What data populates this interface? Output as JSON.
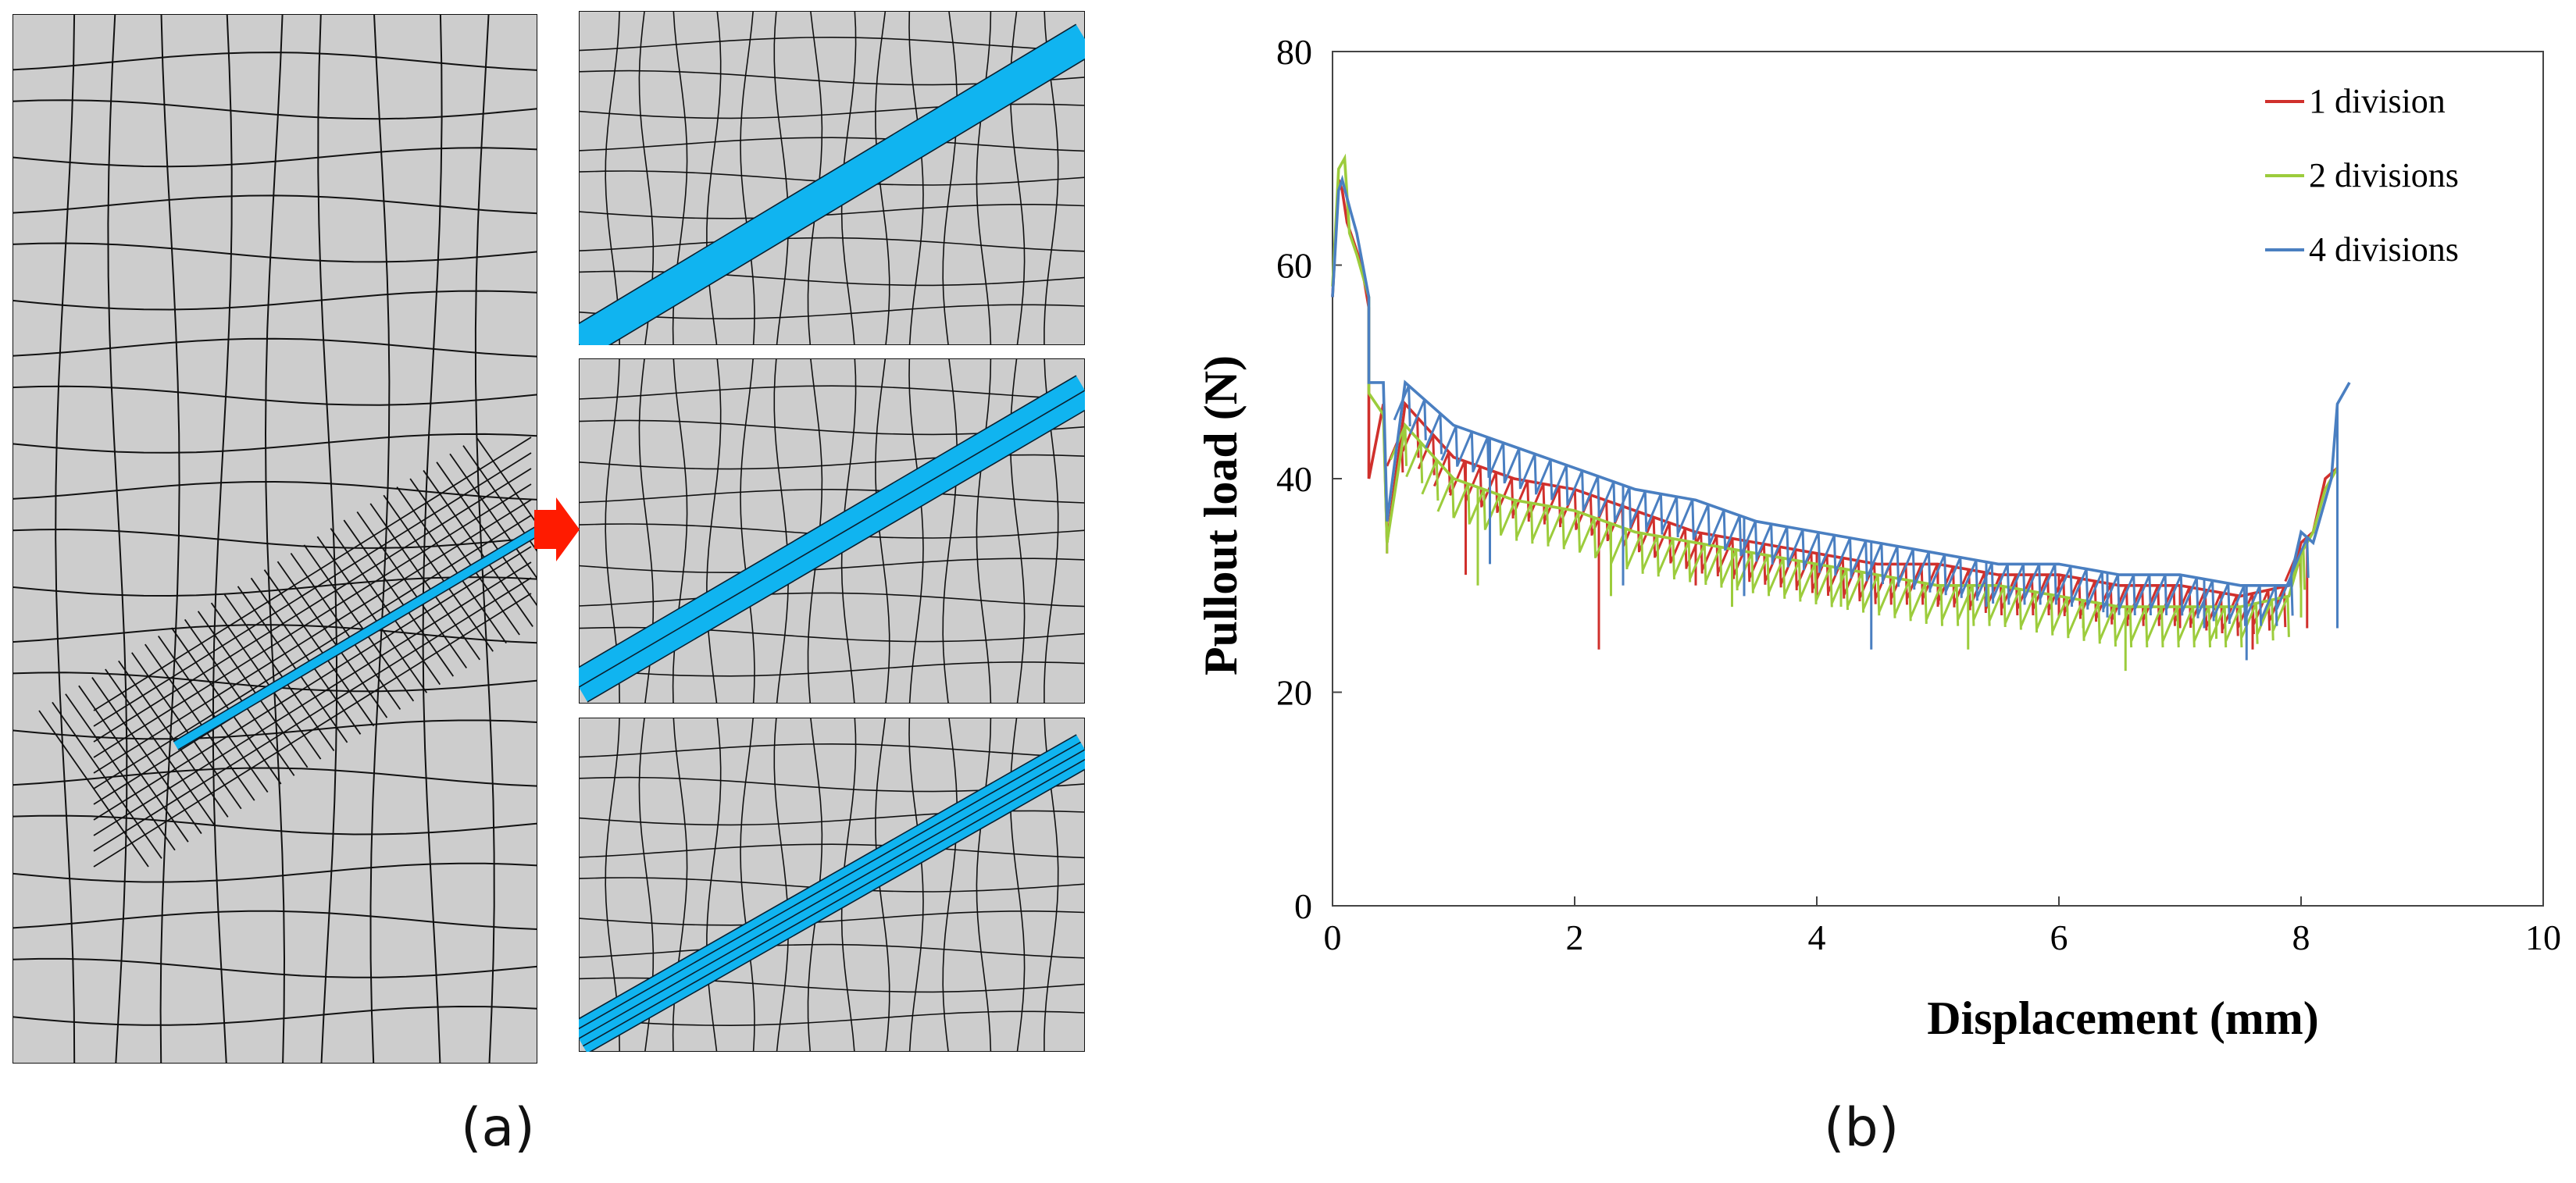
{
  "figure": {
    "panel_a_label": "(a)",
    "panel_b_label": "(b)"
  },
  "mesh": {
    "fill_color": "#cdcdcd",
    "line_color": "#111111",
    "fiber_color": "#10b4f0",
    "arrow_color": "#ff1b00",
    "zoom_panels": [
      {
        "name": "zoom-panel-1-division",
        "divisions": 1
      },
      {
        "name": "zoom-panel-2-divisions",
        "divisions": 2
      },
      {
        "name": "zoom-panel-4-divisions",
        "divisions": 4
      }
    ]
  },
  "chart_data": {
    "type": "line",
    "title": "",
    "xlabel": "Displacement (mm)",
    "ylabel": "Pullout load (N)",
    "xlim": [
      0,
      10
    ],
    "ylim": [
      0,
      80
    ],
    "xticks": [
      0,
      2,
      4,
      6,
      8,
      10
    ],
    "yticks": [
      0,
      20,
      40,
      60,
      80
    ],
    "legend_position": "top-right",
    "series": [
      {
        "name": "1 division",
        "color": "#d0302c",
        "x": [
          0.0,
          0.05,
          0.08,
          0.12,
          0.18,
          0.24,
          0.3,
          0.3,
          0.42,
          0.45,
          0.6,
          1.0,
          1.5,
          2.0,
          2.5,
          3.0,
          3.5,
          4.0,
          4.5,
          5.0,
          5.5,
          6.0,
          6.5,
          7.0,
          7.5,
          7.9,
          8.0,
          8.1,
          8.2,
          8.3
        ],
        "values": [
          57,
          68,
          67,
          64,
          62,
          60,
          56,
          40,
          47,
          34,
          47,
          42,
          40,
          39,
          37,
          35,
          34,
          33,
          32,
          32,
          31,
          31,
          30,
          30,
          29,
          30,
          34,
          35,
          40,
          41
        ],
        "drops": [
          [
            0.45,
            33
          ],
          [
            1.1,
            31
          ],
          [
            2.2,
            24
          ],
          [
            3.0,
            30
          ],
          [
            4.0,
            29
          ],
          [
            5.0,
            28
          ],
          [
            6.0,
            27
          ],
          [
            7.0,
            26
          ],
          [
            7.6,
            24
          ],
          [
            8.05,
            26
          ]
        ]
      },
      {
        "name": "2 divisions",
        "color": "#9ccc3c",
        "x": [
          0.0,
          0.05,
          0.1,
          0.14,
          0.2,
          0.3,
          0.3,
          0.42,
          0.45,
          0.6,
          1.0,
          1.5,
          2.0,
          2.5,
          3.0,
          3.5,
          4.0,
          4.5,
          5.0,
          5.5,
          6.0,
          6.5,
          7.0,
          7.5,
          7.9,
          8.0,
          8.1,
          8.2,
          8.3
        ],
        "values": [
          58,
          69,
          70,
          63,
          61,
          57,
          48,
          46,
          34,
          45,
          40,
          38,
          37,
          35,
          34,
          33,
          32,
          31,
          30,
          30,
          29,
          28,
          28,
          28,
          29,
          33,
          35,
          39,
          41
        ],
        "drops": [
          [
            0.45,
            33
          ],
          [
            1.2,
            30
          ],
          [
            2.3,
            29
          ],
          [
            3.3,
            28
          ],
          [
            4.2,
            28
          ],
          [
            5.25,
            24
          ],
          [
            6.2,
            26
          ],
          [
            6.55,
            22
          ],
          [
            7.3,
            25
          ],
          [
            8.0,
            27
          ]
        ]
      },
      {
        "name": "4 divisions",
        "color": "#4a7fc1",
        "x": [
          0.0,
          0.05,
          0.08,
          0.15,
          0.2,
          0.3,
          0.3,
          0.42,
          0.45,
          0.6,
          1.0,
          1.5,
          2.0,
          2.5,
          3.0,
          3.5,
          4.0,
          4.5,
          5.0,
          5.5,
          6.0,
          6.5,
          7.0,
          7.5,
          7.9,
          8.0,
          8.1,
          8.25,
          8.3,
          8.4
        ],
        "values": [
          57,
          67,
          68,
          65,
          63,
          57,
          49,
          49,
          36,
          49,
          45,
          43,
          41,
          39,
          38,
          36,
          35,
          34,
          33,
          32,
          32,
          31,
          31,
          30,
          30,
          35,
          34,
          40,
          47,
          49
        ],
        "drops": [
          [
            0.45,
            36
          ],
          [
            1.3,
            32
          ],
          [
            2.4,
            30
          ],
          [
            3.4,
            29
          ],
          [
            4.45,
            24
          ],
          [
            5.4,
            28
          ],
          [
            6.4,
            27
          ],
          [
            7.2,
            26
          ],
          [
            7.55,
            23
          ],
          [
            8.3,
            26
          ]
        ]
      }
    ]
  }
}
